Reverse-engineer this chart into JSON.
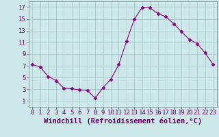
{
  "x": [
    0,
    1,
    2,
    3,
    4,
    5,
    6,
    7,
    8,
    9,
    10,
    11,
    12,
    13,
    14,
    15,
    16,
    17,
    18,
    19,
    20,
    21,
    22,
    23
  ],
  "y": [
    7.2,
    6.8,
    5.2,
    4.5,
    3.2,
    3.1,
    2.9,
    2.8,
    1.5,
    3.3,
    4.7,
    7.2,
    11.2,
    15.0,
    17.0,
    16.9,
    15.9,
    15.4,
    14.2,
    12.8,
    11.5,
    10.8,
    9.2,
    7.3
  ],
  "line_color": "#8b008b",
  "marker": "D",
  "marker_size": 2.5,
  "bg_color": "#cce8e8",
  "grid_color": "#aacccc",
  "xlabel": "Windchill (Refroidissement éolien,°C)",
  "xlabel_fontsize": 7.5,
  "tick_fontsize": 6.5,
  "ylim": [
    0,
    18
  ],
  "xlim": [
    -0.5,
    23.5
  ],
  "yticks": [
    1,
    3,
    5,
    7,
    9,
    11,
    13,
    15,
    17
  ],
  "xticks": [
    0,
    1,
    2,
    3,
    4,
    5,
    6,
    7,
    8,
    9,
    10,
    11,
    12,
    13,
    14,
    15,
    16,
    17,
    18,
    19,
    20,
    21,
    22,
    23
  ]
}
